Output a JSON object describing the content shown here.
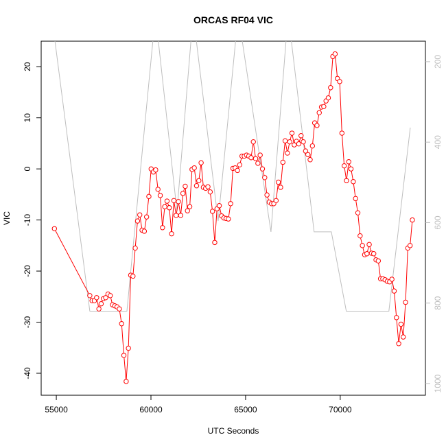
{
  "chart_data": {
    "type": "line",
    "title": "ORCAS RF04 VIC",
    "x_label": "UTC Seconds",
    "y_label": "VIC",
    "xlim": [
      54200,
      74500
    ],
    "ylim": [
      -44.3,
      25
    ],
    "y2lim": [
      1029,
      149
    ],
    "xticks": [
      55000,
      60000,
      65000,
      70000
    ],
    "yticks": [
      -40,
      -30,
      -20,
      -10,
      0,
      10,
      20
    ],
    "y2ticks": [
      200,
      400,
      600,
      800,
      1000
    ],
    "series": [
      {
        "color": "#ff0000",
        "marker": "circle",
        "x": [
          54900,
          56770,
          56890,
          57010,
          57130,
          57250,
          57370,
          57490,
          57610,
          57730,
          57850,
          57970,
          58090,
          58210,
          58330,
          58450,
          58570,
          58690,
          58810,
          58930,
          59050,
          59170,
          59290,
          59410,
          59530,
          59650,
          59770,
          59890,
          60010,
          60130,
          60250,
          60370,
          60490,
          60610,
          60730,
          60850,
          60970,
          61090,
          61210,
          61330,
          61450,
          61570,
          61690,
          61810,
          61930,
          62050,
          62170,
          62290,
          62410,
          62530,
          62650,
          62770,
          62890,
          63010,
          63130,
          63250,
          63370,
          63490,
          63610,
          63730,
          63850,
          63970,
          64090,
          64210,
          64330,
          64450,
          64570,
          64690,
          64810,
          64930,
          65050,
          65170,
          65290,
          65410,
          65530,
          65650,
          65770,
          65890,
          66010,
          66130,
          66250,
          66370,
          66490,
          66610,
          66730,
          66850,
          66970,
          67090,
          67210,
          67330,
          67450,
          67570,
          67690,
          67810,
          67930,
          68050,
          68170,
          68290,
          68410,
          68530,
          68650,
          68770,
          68890,
          69010,
          69130,
          69250,
          69370,
          69490,
          69610,
          69730,
          69850,
          69970,
          70090,
          70210,
          70330,
          70450,
          70570,
          70690,
          70810,
          70930,
          71050,
          71170,
          71290,
          71410,
          71530,
          71650,
          71770,
          71890,
          72010,
          72130,
          72250,
          72370,
          72490,
          72610,
          72730,
          72850,
          72970,
          73090,
          73210,
          73330,
          73450,
          73570,
          73690,
          73810
        ],
        "values": [
          -11.7,
          -24.8,
          -25.8,
          -25.8,
          -25.2,
          -27.4,
          -26.4,
          -25.4,
          -25.2,
          -24.5,
          -24.8,
          -26.6,
          -26.8,
          -27,
          -27.4,
          -30.3,
          -36.5,
          -41.6,
          -35.1,
          -20.8,
          -21,
          -15.5,
          -10.2,
          -9,
          -12,
          -12.2,
          -9.4,
          -5.4,
          0,
          -0.6,
          -0.2,
          -4,
          -5.2,
          -11.5,
          -7.4,
          -6.3,
          -7.6,
          -12.7,
          -6.2,
          -9.1,
          -6.4,
          -9.1,
          -4.8,
          -3.4,
          -8.2,
          -7.4,
          -0.1,
          0.2,
          -3.3,
          -2.3,
          1.2,
          -3.6,
          -3.8,
          -3.5,
          -4.5,
          -8.3,
          -14.4,
          -7.8,
          -7.2,
          -9.2,
          -9.6,
          -9.7,
          -9.8,
          -6.8,
          0.1,
          0.2,
          -0.3,
          0.8,
          2.5,
          2.5,
          2.7,
          2.5,
          2.2,
          5.3,
          2,
          1.1,
          2.7,
          0,
          -1.7,
          -5.1,
          -6.5,
          -6.8,
          -6.8,
          -6.2,
          -2.6,
          -3.6,
          1.3,
          5.5,
          3.1,
          5.3,
          7,
          4.7,
          5.4,
          4.9,
          6.5,
          5.3,
          3.5,
          2.8,
          1.8,
          4.5,
          9,
          8.5,
          11,
          12.1,
          12.2,
          13.3,
          13.9,
          15.9,
          22,
          22.5,
          17.7,
          17.1,
          7,
          0.6,
          -2.3,
          1.4,
          0,
          -2.5,
          -5.8,
          -8.6,
          -13.1,
          -15,
          -16.8,
          -16.6,
          -14.8,
          -16.5,
          -16.6,
          -17.8,
          -18,
          -21.5,
          -21.5,
          -21.7,
          -22,
          -22.1,
          -21.6,
          -23.9,
          -29.1,
          -34.2,
          -30.4,
          -32.9,
          -26.1,
          -15.5,
          -15,
          -10
        ]
      },
      {
        "color": "#bebebe",
        "axis": "y2",
        "x": [
          54850,
          56770,
          58730,
          60180,
          60300,
          61375,
          62180,
          62300,
          63550,
          64550,
          64700,
          66340,
          67200,
          67320,
          68620,
          69530,
          70320,
          72570,
          73700
        ],
        "values": [
          120,
          820,
          820,
          110,
          110,
          572,
          110,
          110,
          596,
          110,
          110,
          623,
          110,
          110,
          623,
          623,
          820,
          820,
          364
        ]
      }
    ]
  }
}
